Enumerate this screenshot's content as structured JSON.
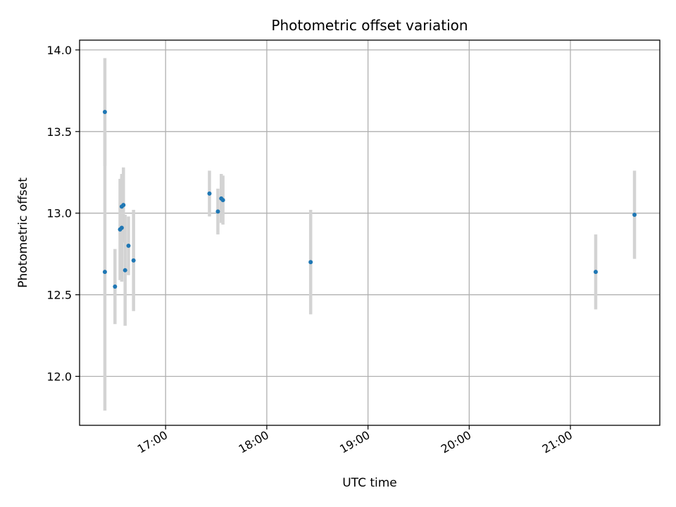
{
  "chart_data": {
    "type": "scatter",
    "title": "Photometric offset variation",
    "xlabel": "UTC time",
    "ylabel": "Photometric offset",
    "x_tick_labels": [
      "17:00",
      "18:00",
      "19:00",
      "20:00",
      "21:00"
    ],
    "x_tick_values": [
      "17:00",
      "18:00",
      "19:00",
      "20:00",
      "21:00"
    ],
    "y_tick_labels": [
      "12.0",
      "12.5",
      "13.0",
      "13.5",
      "14.0"
    ],
    "y_tick_values": [
      12.0,
      12.5,
      13.0,
      13.5,
      14.0
    ],
    "xlim": [
      "16:09",
      "21:53"
    ],
    "ylim": [
      11.7,
      14.06
    ],
    "grid": true,
    "legend": "none",
    "colors": {
      "point": "#1f77b4",
      "errorbar": "#d3d3d3",
      "grid": "#b0b0b0"
    },
    "points": [
      {
        "x": "16:24",
        "y": 13.62,
        "yerr": 0.33
      },
      {
        "x": "16:24",
        "y": 12.64,
        "yerr": 0.85
      },
      {
        "x": "16:30",
        "y": 12.55,
        "yerr": 0.23
      },
      {
        "x": "16:33",
        "y": 12.9,
        "yerr": 0.31
      },
      {
        "x": "16:34",
        "y": 12.91,
        "yerr": 0.33
      },
      {
        "x": "16:34",
        "y": 13.04,
        "yerr": 0.18
      },
      {
        "x": "16:35",
        "y": 13.05,
        "yerr": 0.23
      },
      {
        "x": "16:36",
        "y": 12.65,
        "yerr": 0.34
      },
      {
        "x": "16:38",
        "y": 12.8,
        "yerr": 0.18
      },
      {
        "x": "16:41",
        "y": 12.71,
        "yerr": 0.31
      },
      {
        "x": "17:26",
        "y": 13.12,
        "yerr": 0.14
      },
      {
        "x": "17:31",
        "y": 13.01,
        "yerr": 0.14
      },
      {
        "x": "17:33",
        "y": 13.09,
        "yerr": 0.15
      },
      {
        "x": "17:34",
        "y": 13.08,
        "yerr": 0.15
      },
      {
        "x": "18:26",
        "y": 12.7,
        "yerr": 0.32
      },
      {
        "x": "21:15",
        "y": 12.64,
        "yerr": 0.23
      },
      {
        "x": "21:38",
        "y": 12.99,
        "yerr": 0.27
      }
    ]
  }
}
